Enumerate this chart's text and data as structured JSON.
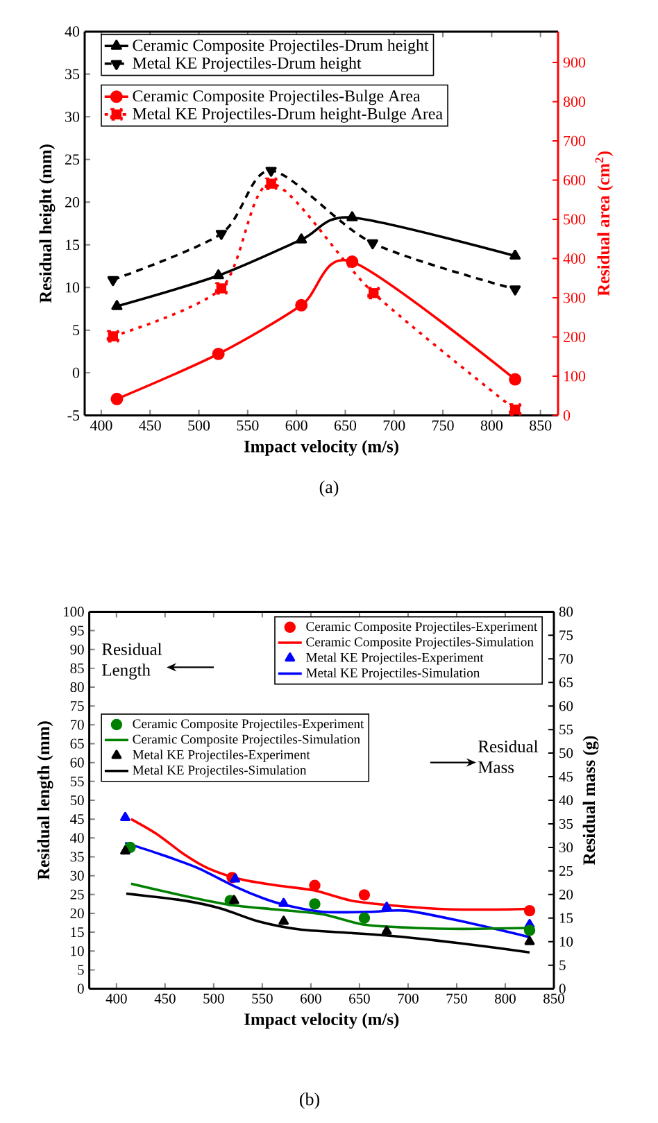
{
  "chart_data": [
    {
      "type": "line",
      "xlabel": "Impact velocity (m/s)",
      "ylabel": "Residual height (mm)",
      "y2label": "Residual area (cm$^{2}$)",
      "xlim": [
        383,
        868
      ],
      "xticks": [
        400,
        450,
        500,
        550,
        600,
        650,
        700,
        750,
        800,
        850
      ],
      "ylim": [
        -5,
        40
      ],
      "yticks": [
        -5,
        0,
        5,
        10,
        15,
        20,
        25,
        30,
        35,
        40
      ],
      "y2lim": [
        0,
        979
      ],
      "y2ticks": [
        0,
        100,
        200,
        300,
        400,
        500,
        600,
        700,
        800,
        900
      ],
      "legend": "top left",
      "annotations": [
        "(a)"
      ],
      "series": [
        {
          "name": "Ceramic Composite Projectiles-Drum height",
          "color": "#000000",
          "marker": "triangle",
          "line_style": "solid",
          "x": [
            416,
            520,
            605,
            657,
            824
          ],
          "values": [
            7.8,
            11.4,
            15.6,
            18.2,
            13.7
          ]
        },
        {
          "name": "Metal KE Projectiles-Drum height",
          "color": "#000000",
          "marker": "triangle-down",
          "line_style": "dashed",
          "x": [
            412,
            523,
            574,
            678,
            824
          ],
          "values": [
            10.9,
            16.3,
            23.7,
            15.2,
            9.8
          ]
        },
        {
          "name": "Ceramic Composite Projectiles-Bulge Area",
          "color": "#ff0000",
          "marker": "circle",
          "line_style": "solid",
          "axis": "y2",
          "x": [
            416,
            520,
            605,
            657,
            824
          ],
          "values": [
            42,
            157,
            281,
            392,
            92
          ]
        },
        {
          "name": "Metal KE Projectiles-Drum height-Bulge Area",
          "color": "#ff0000",
          "marker": "square",
          "line_style": "dotted",
          "axis": "y2",
          "x": [
            412,
            523,
            574,
            679,
            824
          ],
          "values": [
            202,
            324,
            591,
            312,
            15
          ]
        }
      ]
    },
    {
      "type": "line",
      "xlabel": "Impact velocity (m/s)",
      "ylabel": "Residual length (mm)",
      "y2label": "Residual mass (g)",
      "xlim": [
        372,
        850
      ],
      "xticks": [
        400,
        450,
        500,
        550,
        600,
        650,
        700,
        750,
        800,
        850
      ],
      "ylim": [
        0,
        100
      ],
      "yticks": [
        0,
        5,
        10,
        15,
        20,
        25,
        30,
        35,
        40,
        45,
        50,
        55,
        60,
        65,
        70,
        75,
        80,
        85,
        90,
        95,
        100
      ],
      "y2lim": [
        0,
        80
      ],
      "y2ticks": [
        0,
        5,
        10,
        15,
        20,
        25,
        30,
        35,
        40,
        45,
        50,
        55,
        60,
        65,
        70,
        75,
        80
      ],
      "legend": "top right",
      "annotations": [
        "Residual Length",
        "Residual Mass",
        "(b)"
      ],
      "series": [
        {
          "name": "Ceramic Composite Projectiles-Experiment",
          "type": "scatter",
          "marker": "circle",
          "color": "#ff0000",
          "x": [
            519,
            604,
            655,
            825
          ],
          "values": [
            29.5,
            27.4,
            24.9,
            20.7
          ]
        },
        {
          "name": "Ceramic Composite Projectiles-Simulation",
          "type": "line",
          "color": "#ff0000",
          "x": [
            415,
            441,
            470,
            494,
            527,
            565,
            603,
            641,
            679,
            731,
            779,
            825
          ],
          "values": [
            45,
            41.1,
            35.6,
            32.0,
            29.1,
            27.4,
            26.1,
            23.4,
            22.2,
            21.2,
            21.0,
            21.2
          ]
        },
        {
          "name": "Metal KE Projectiles-Experiment",
          "type": "scatter",
          "marker": "triangle",
          "color": "#0000ff",
          "x": [
            409,
            522,
            572,
            678,
            825
          ],
          "values": [
            45.4,
            29.1,
            22.6,
            21.6,
            17.0
          ]
        },
        {
          "name": "Metal KE Projectiles-Simulation",
          "type": "line",
          "color": "#0000ff",
          "x": [
            409,
            446,
            484,
            522,
            551,
            574,
            612,
            660,
            698,
            755,
            825
          ],
          "values": [
            38.7,
            35.6,
            32.0,
            27.1,
            24.0,
            22.2,
            20.4,
            20.4,
            20.7,
            17.9,
            13.7
          ]
        },
        {
          "name": "Ceramic Composite Projectiles-Experiment",
          "type": "scatter",
          "marker": "circle",
          "color": "#008000",
          "axis": "y2",
          "x": [
            414,
            517,
            604,
            655,
            825
          ],
          "values": [
            30.0,
            18.7,
            18.0,
            15.0,
            12.4
          ]
        },
        {
          "name": "Ceramic Composite Projectiles-Simulation",
          "type": "line",
          "color": "#008000",
          "axis": "y2",
          "x": [
            415,
            470,
            517,
            565,
            612,
            655,
            708,
            755,
            825
          ],
          "values": [
            22.3,
            19.7,
            17.8,
            16.8,
            15.8,
            13.6,
            12.9,
            12.7,
            12.9
          ]
        },
        {
          "name": "Metal KE Projectiles-Experiment",
          "type": "scatter",
          "marker": "triangle",
          "color": "#000000",
          "axis": "y2",
          "x": [
            409,
            521,
            572,
            678,
            825
          ],
          "values": [
            29.2,
            18.7,
            14.3,
            12.2,
            10.0
          ]
        },
        {
          "name": "Metal KE Projectiles-Simulation",
          "type": "line",
          "color": "#000000",
          "axis": "y2",
          "x": [
            410,
            470,
            508,
            546,
            588,
            636,
            683,
            731,
            779,
            825
          ],
          "values": [
            20.2,
            18.7,
            17.0,
            14.3,
            12.6,
            11.9,
            11.2,
            10.2,
            9.0,
            7.7
          ]
        }
      ]
    }
  ]
}
